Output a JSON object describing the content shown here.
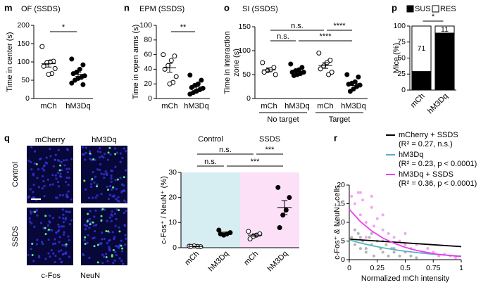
{
  "chart_data": [
    {
      "type": "dot",
      "panel": "m",
      "title": "OF (SSDS)",
      "y_label": "Time in center (s)",
      "categories": [
        "mCh",
        "hM3Dq"
      ],
      "filled": [
        false,
        true
      ],
      "points": [
        [
          142,
          102,
          100,
          98,
          88,
          82,
          68,
          66
        ],
        [
          108,
          92,
          80,
          72,
          68,
          62,
          58,
          55,
          50,
          42,
          38
        ]
      ],
      "mean": [
        95,
        66
      ],
      "sem": [
        9,
        6
      ],
      "ylim": [
        0,
        200
      ],
      "yticks": [
        0,
        50,
        100,
        150,
        200
      ],
      "brackets": [
        [
          {
            "label": "*",
            "between": [
              0,
              1
            ]
          }
        ]
      ]
    },
    {
      "type": "dot",
      "panel": "n",
      "title": "EPM (SSDS)",
      "y_label": "Time in open arms (s)",
      "categories": [
        "mCh",
        "hM3Dq"
      ],
      "filled": [
        false,
        true
      ],
      "points": [
        [
          60,
          58,
          52,
          45,
          40,
          30,
          22,
          20
        ],
        [
          32,
          25,
          20,
          18,
          15,
          14,
          12,
          10,
          8,
          6
        ]
      ],
      "mean": [
        42,
        16
      ],
      "sem": [
        6,
        3
      ],
      "ylim": [
        0,
        100
      ],
      "yticks": [
        0,
        20,
        40,
        60,
        80,
        100
      ],
      "brackets": [
        [
          {
            "label": "**",
            "between": [
              0,
              1
            ]
          }
        ]
      ]
    },
    {
      "type": "dot",
      "panel": "o",
      "title": "SI (SSDS)",
      "y_label": [
        "Time in interaction",
        "zone (s)"
      ],
      "categories": [
        "mCh",
        "hM3Dq",
        "mCh",
        "hM3Dq"
      ],
      "groups": [
        "No target",
        "Target"
      ],
      "filled": [
        false,
        true,
        false,
        true
      ],
      "points": [
        [
          75,
          65,
          60,
          58,
          55,
          50
        ],
        [
          72,
          65,
          60,
          58,
          55,
          55,
          52,
          50,
          48
        ],
        [
          95,
          80,
          75,
          68,
          62,
          55,
          50
        ],
        [
          50,
          45,
          35,
          32,
          30,
          28,
          25,
          20,
          15
        ]
      ],
      "mean": [
        60,
        57,
        69,
        31
      ],
      "sem": [
        4,
        3,
        6,
        4
      ],
      "ylim": [
        0,
        150
      ],
      "yticks": [
        0,
        50,
        100,
        150
      ],
      "brackets": [
        [
          {
            "label": "n.s.",
            "between": [
              0,
              2
            ]
          },
          {
            "label": "****",
            "between": [
              2,
              3
            ]
          }
        ],
        [
          {
            "label": "n.s.",
            "between": [
              0,
              1
            ]
          },
          {
            "label": "****",
            "between": [
              1,
              3
            ]
          }
        ]
      ]
    },
    {
      "type": "stacked_bar",
      "panel": "p",
      "y_label": "Mice (%)",
      "categories": [
        "mCh",
        "hM3Dq"
      ],
      "series": [
        {
          "name": "SUS",
          "color": "#000000",
          "values": [
            29,
            89
          ]
        },
        {
          "name": "RES",
          "color": "#ffffff",
          "values": [
            71,
            11
          ]
        }
      ],
      "ylim": [
        0,
        100
      ],
      "yticks": [
        0,
        25,
        50,
        75,
        100
      ],
      "brackets": [
        [
          {
            "label": "*",
            "between": [
              0,
              1
            ]
          }
        ]
      ]
    },
    {
      "type": "dot",
      "panel": "q",
      "images": {
        "columns": [
          "mCherry",
          "hM3Dq"
        ],
        "rows": [
          "Control",
          "SSDS"
        ],
        "stains": [
          {
            "name": "c-Fos",
            "color": "#2ca02c"
          },
          {
            "name": "NeuN",
            "color": "#2323d8"
          }
        ]
      },
      "y_label": "c-Fos⁺ / NeuN⁺ (%)",
      "categories": [
        "mCh",
        "hM3Dq",
        "mCh",
        "hM3Dq"
      ],
      "groups": [
        "Control",
        "SSDS"
      ],
      "group_colors": [
        "#d6edf2",
        "#fbe0f8"
      ],
      "filled": [
        false,
        true,
        false,
        true
      ],
      "points": [
        [
          0.6,
          0.4,
          0.5,
          0.7,
          0.5
        ],
        [
          7,
          6,
          5.5,
          5,
          5.5
        ],
        [
          6.5,
          5.5,
          5,
          4.5,
          3.5
        ],
        [
          24,
          20,
          15,
          13,
          8
        ]
      ],
      "mean": [
        0.5,
        5.8,
        5,
        16
      ],
      "sem": [
        0.1,
        0.4,
        0.5,
        2.8
      ],
      "ylim": [
        0,
        30
      ],
      "yticks": [
        0,
        10,
        20,
        30
      ],
      "brackets": [
        [
          {
            "label": "n.s.",
            "between": [
              0,
              2
            ]
          },
          {
            "label": "***",
            "between": [
              2,
              3
            ]
          }
        ],
        [
          {
            "label": "n.s.",
            "between": [
              0,
              1
            ]
          },
          {
            "label": "***",
            "between": [
              1,
              3
            ]
          }
        ]
      ]
    },
    {
      "type": "scatter",
      "panel": "r",
      "y_label": "c-Fos⁺ & NeuN⁺ cells",
      "x_label": "Normalized mCh intensity",
      "xlim": [
        0,
        1
      ],
      "xticks": [
        0,
        0.25,
        0.5,
        0.75,
        1
      ],
      "ylim": [
        0,
        20
      ],
      "yticks": [
        0,
        5,
        10,
        15,
        20
      ],
      "series": [
        {
          "name": "mCherry + SSDS",
          "stat": "(R² = 0.27, n.s.)",
          "color": "#000000",
          "fit_x": [
            0,
            1
          ],
          "fit_y": [
            5.5,
            3.5
          ]
        },
        {
          "name": "hM3Dq",
          "stat": "(R² = 0.23, p < 0.0001)",
          "color": "#55b3c2",
          "point_color": "#b4b4b4",
          "x": [
            0.02,
            0.05,
            0.08,
            0.1,
            0.12,
            0.15,
            0.18,
            0.2,
            0.22,
            0.25,
            0.28,
            0.3,
            0.33,
            0.35,
            0.38,
            0.4,
            0.45,
            0.5,
            0.55,
            0.6,
            0.05,
            0.1,
            0.15,
            0.2,
            0.3,
            0.4
          ],
          "y": [
            6,
            4,
            7,
            3,
            5,
            2,
            6,
            4,
            1,
            5,
            3,
            2,
            4,
            1,
            3,
            2,
            1,
            2,
            1,
            0.5,
            8,
            6,
            3,
            7,
            5,
            3
          ],
          "fit_x": [
            0,
            0.1,
            0.2,
            0.3,
            0.4,
            0.5,
            0.6,
            0.7,
            0.8,
            0.9,
            1
          ],
          "fit_y": [
            5.3,
            4.47,
            3.78,
            3.18,
            2.69,
            2.27,
            1.91,
            1.61,
            1.36,
            1.15,
            0.97
          ]
        },
        {
          "name": "hM3Dq + SSDS",
          "stat": "(R² = 0.36, p < 0.0001)",
          "color": "#ee3df0",
          "point_color": "#f3a4f3",
          "x": [
            0.02,
            0.05,
            0.08,
            0.1,
            0.12,
            0.15,
            0.2,
            0.22,
            0.25,
            0.3,
            0.35,
            0.4,
            0.45,
            0.5,
            0.55,
            0.6,
            0.65,
            0.7,
            0.75,
            0.8,
            0.85,
            0.9,
            0.95,
            0.1,
            0.2,
            0.3,
            0.15,
            0.5
          ],
          "y": [
            17,
            15,
            18,
            12,
            16,
            10,
            14,
            9,
            11,
            8,
            7,
            6,
            5,
            4,
            3,
            4,
            2,
            3,
            2,
            1,
            1.5,
            1,
            0.5,
            18,
            17,
            12,
            6,
            7
          ],
          "fit_x": [
            0,
            0.1,
            0.2,
            0.3,
            0.4,
            0.5,
            0.6,
            0.7,
            0.8,
            0.9,
            1
          ],
          "fit_y": [
            13.5,
            10.2,
            7.7,
            5.8,
            4.4,
            3.3,
            2.5,
            1.9,
            1.4,
            1.1,
            0.82
          ]
        }
      ]
    }
  ]
}
